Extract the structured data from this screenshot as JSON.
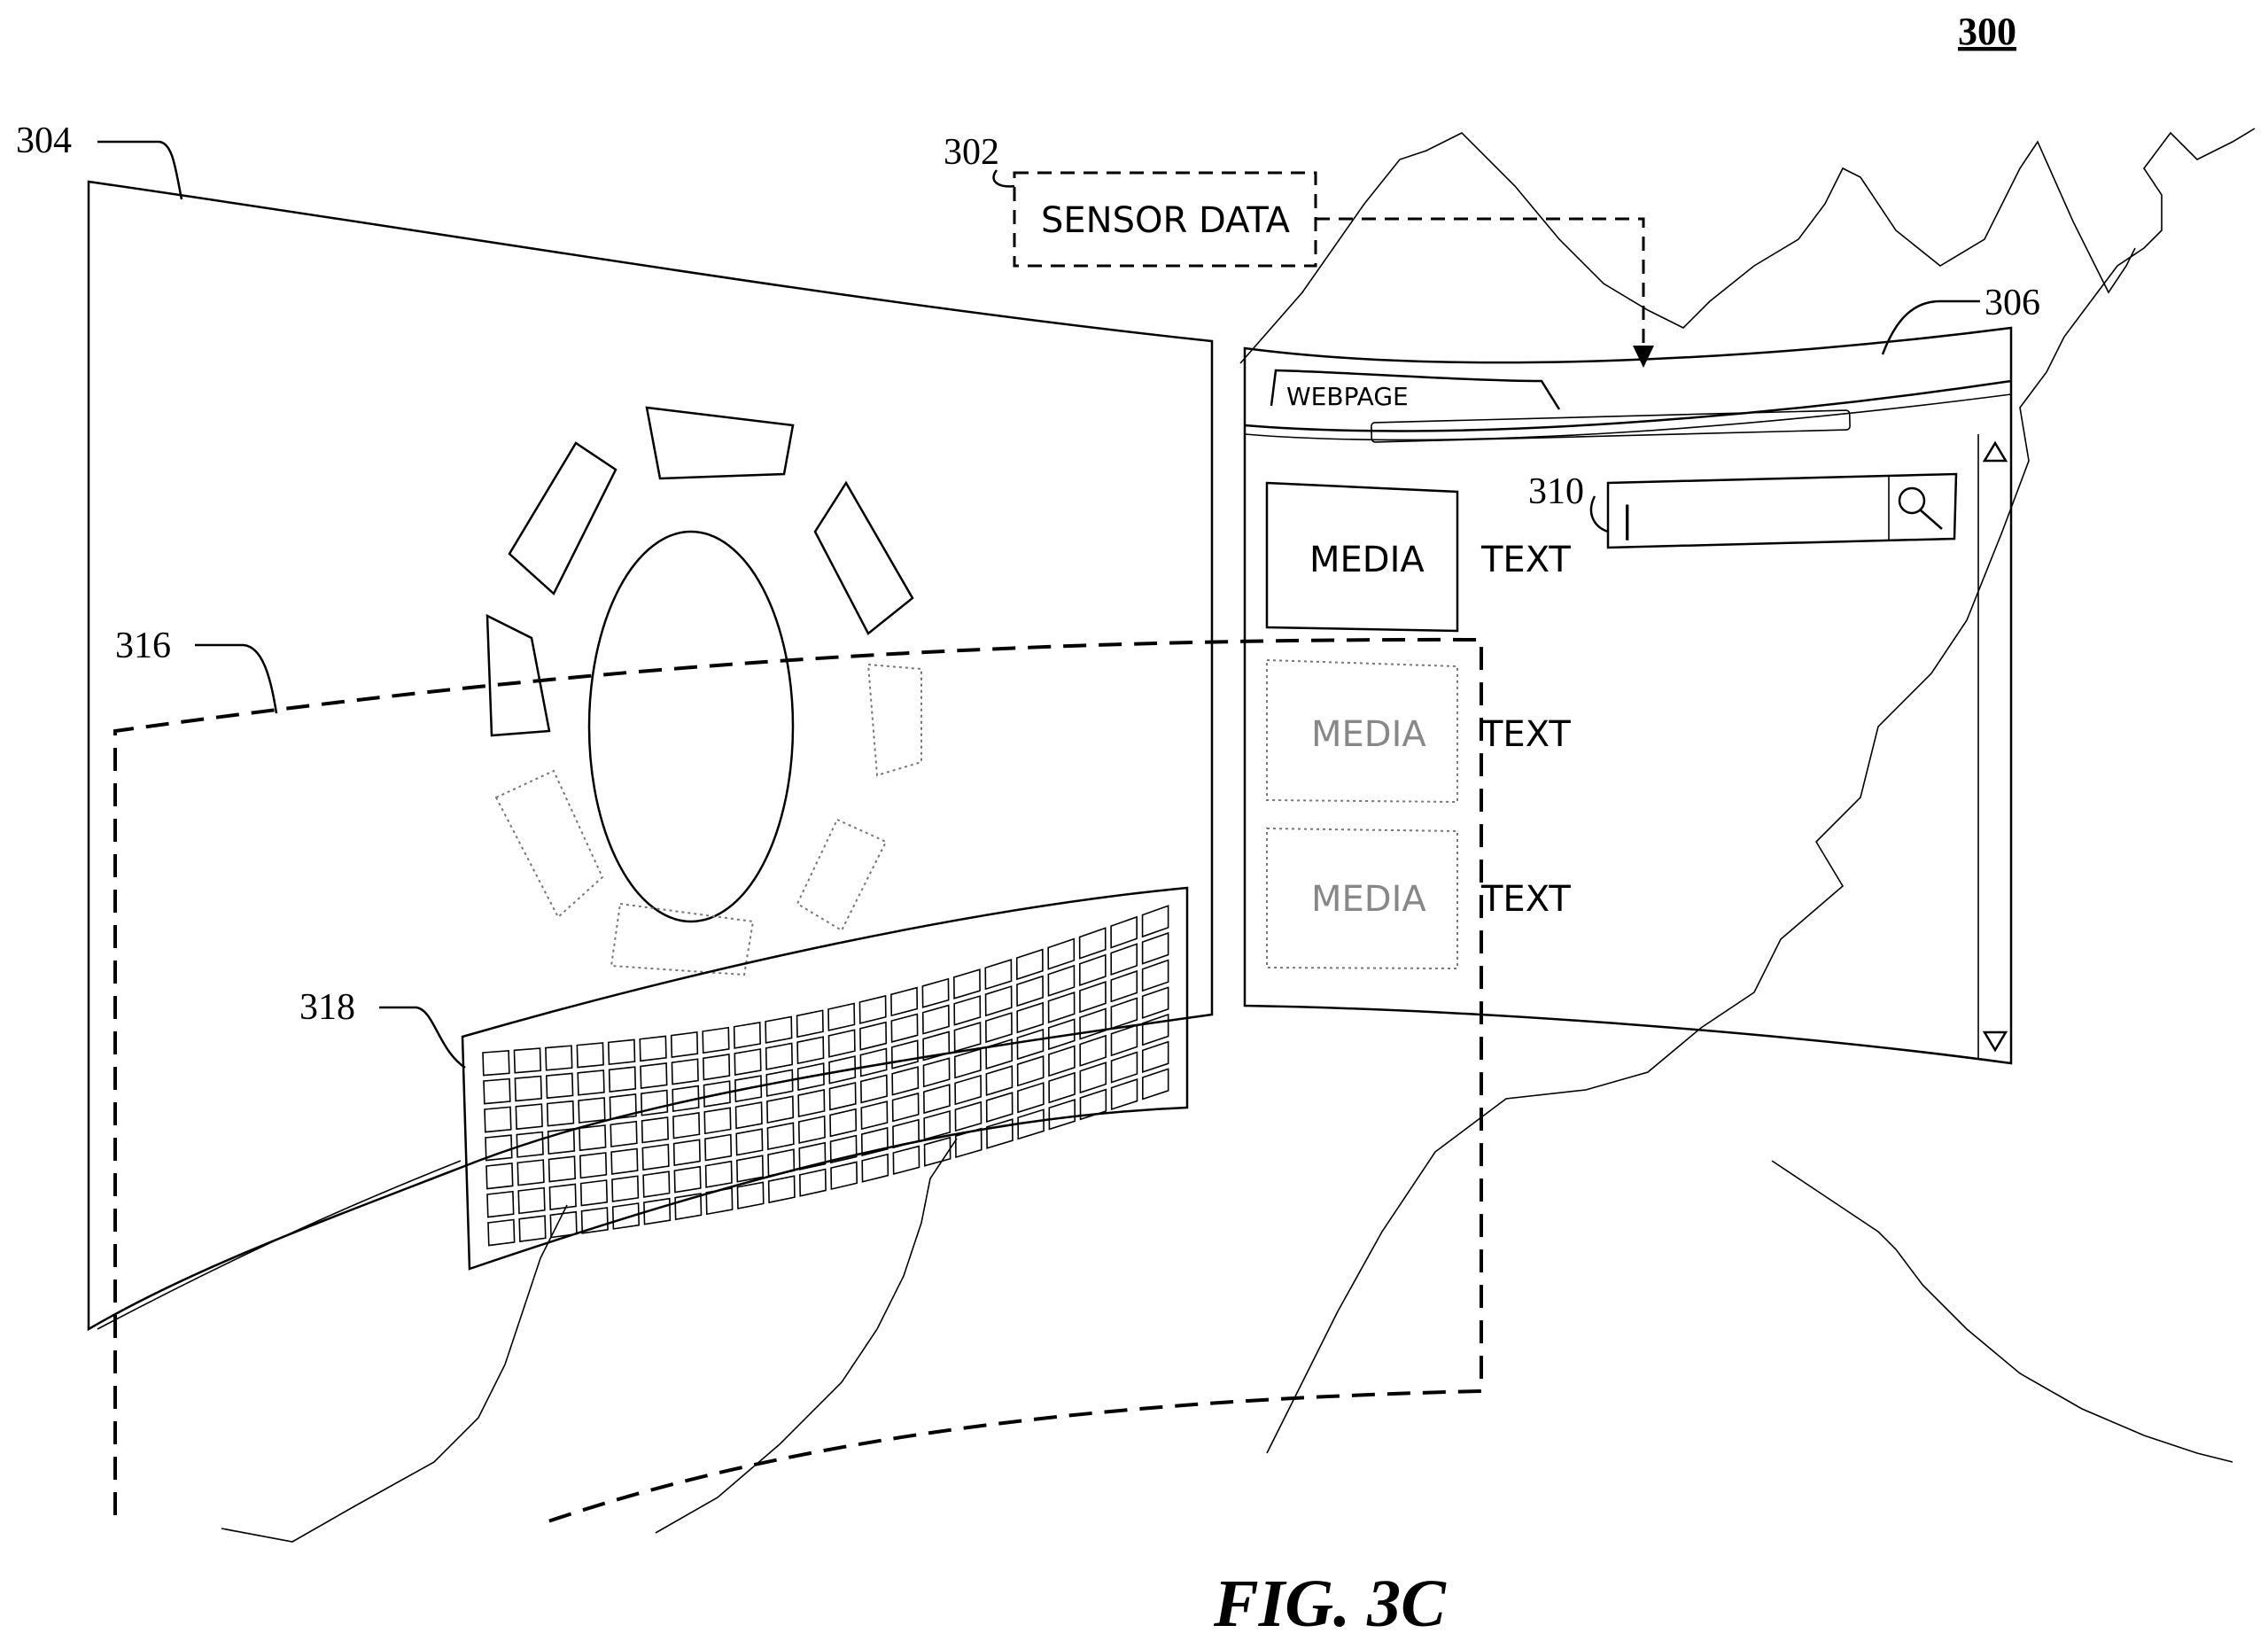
{
  "figure": {
    "number": "300",
    "caption": "FIG. 3C"
  },
  "refs": {
    "r302": "302",
    "r304": "304",
    "r306": "306",
    "r310": "310",
    "r316": "316",
    "r318": "318"
  },
  "sensor_box": {
    "label": "SENSOR DATA"
  },
  "webpage": {
    "tab_label": "WEBPAGE",
    "items": [
      {
        "media": "MEDIA",
        "text": "TEXT",
        "state": "solid"
      },
      {
        "media": "MEDIA",
        "text": "TEXT",
        "state": "faded"
      },
      {
        "media": "MEDIA",
        "text": "TEXT",
        "state": "faded"
      }
    ],
    "search": {
      "cursor": "|",
      "icon": "magnifier-icon"
    }
  },
  "menu_ring": {
    "segments": 8
  },
  "keyboard": {
    "rows": 7
  }
}
